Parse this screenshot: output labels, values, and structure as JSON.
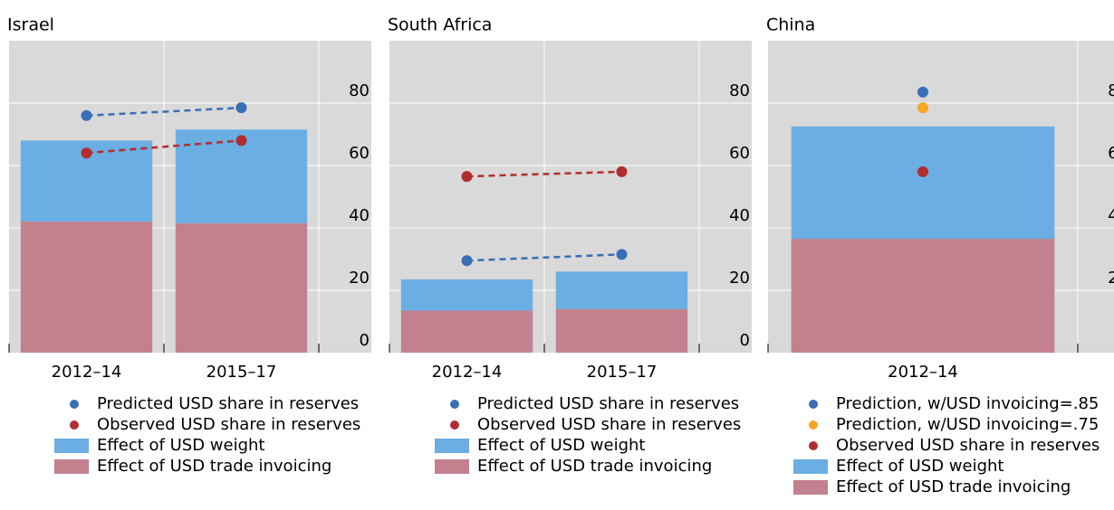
{
  "chart_data": [
    {
      "type": "bar",
      "title": "Israel",
      "categories": [
        "2012–14",
        "2015–17"
      ],
      "ylim": [
        0,
        100
      ],
      "yticks": [
        0,
        20,
        40,
        60,
        80
      ],
      "grid": true,
      "series": [
        {
          "name": "Predicted USD share in reserves",
          "type": "scatter",
          "color": "#3a6eb5",
          "values": [
            76,
            78.5
          ]
        },
        {
          "name": "Observed USD share in reserves",
          "type": "scatter",
          "color": "#b22d2d",
          "values": [
            64,
            68
          ]
        },
        {
          "name": "Effect of USD weight",
          "type": "bar",
          "color": "#6aaee3",
          "values": [
            26,
            30
          ]
        },
        {
          "name": "Effect of USD trade invoicing",
          "type": "bar",
          "color": "#c3808f",
          "values": [
            42,
            41.5
          ]
        }
      ]
    },
    {
      "type": "bar",
      "title": "South Africa",
      "categories": [
        "2012–14",
        "2015–17"
      ],
      "ylim": [
        0,
        100
      ],
      "yticks": [
        0,
        20,
        40,
        60,
        80
      ],
      "grid": true,
      "series": [
        {
          "name": "Predicted USD share in reserves",
          "type": "scatter",
          "color": "#3a6eb5",
          "values": [
            29.5,
            31.5
          ]
        },
        {
          "name": "Observed USD share in reserves",
          "type": "scatter",
          "color": "#b22d2d",
          "values": [
            56.5,
            58
          ]
        },
        {
          "name": "Effect of USD weight",
          "type": "bar",
          "color": "#6aaee3",
          "values": [
            10,
            12
          ]
        },
        {
          "name": "Effect of USD trade invoicing",
          "type": "bar",
          "color": "#c3808f",
          "values": [
            13.5,
            14
          ]
        }
      ]
    },
    {
      "type": "bar",
      "title": "China",
      "categories": [
        "2012–14"
      ],
      "ylim": [
        0,
        100
      ],
      "yticks": [
        0,
        20,
        40,
        60,
        80
      ],
      "grid": true,
      "series": [
        {
          "name": "Prediction, w/USD invoicing=.85",
          "type": "scatter",
          "color": "#3a6eb5",
          "values": [
            83.5
          ]
        },
        {
          "name": "Prediction, w/USD invoicing=.75",
          "type": "scatter",
          "color": "#f5a623",
          "values": [
            78.5
          ]
        },
        {
          "name": "Observed USD share in reserves",
          "type": "scatter",
          "color": "#b22d2d",
          "values": [
            58
          ]
        },
        {
          "name": "Effect of USD weight",
          "type": "bar",
          "color": "#6aaee3",
          "values": [
            36
          ]
        },
        {
          "name": "Effect of USD trade invoicing",
          "type": "bar",
          "color": "#c3808f",
          "values": [
            36.5
          ]
        }
      ]
    }
  ]
}
